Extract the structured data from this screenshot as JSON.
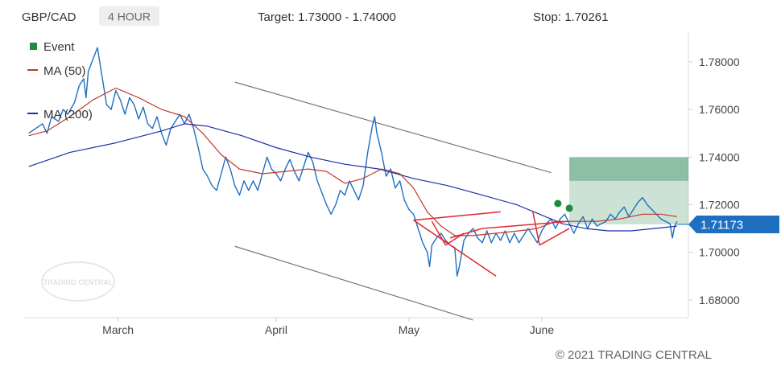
{
  "header": {
    "symbol": "GBP/CAD",
    "timeframe": "4 HOUR",
    "target": "Target: 1.73000 - 1.74000",
    "stop": "Stop: 1.70261"
  },
  "legend": {
    "event": "Event",
    "ma50": "MA (50)",
    "ma200": "MA (200)"
  },
  "watermark": "TRADING CENTRAL",
  "copyright": "© 2021 TRADING CENTRAL",
  "colors": {
    "price": "#1f6fc1",
    "ma50": "#c0392b",
    "ma200": "#1f2fa8",
    "event": "#1e8a3c",
    "target_zone": "#2e8b57",
    "pattern": "#e0262f",
    "channel": "#777777",
    "badge": "#1f6fc1"
  },
  "chart_data": {
    "type": "line",
    "x_labels": [
      "March",
      "April",
      "May",
      "June"
    ],
    "y_ticks": [
      1.68,
      1.7,
      1.72,
      1.74,
      1.76,
      1.78
    ],
    "y_tick_labels": [
      "1.68000",
      "1.70000",
      "1.72000",
      "1.74000",
      "1.76000",
      "1.78000"
    ],
    "ylim": [
      1.6725,
      1.7925
    ],
    "last_price": 1.71173,
    "last_price_label": "1.71173",
    "target_range": [
      1.73,
      1.74
    ],
    "stop": 1.70261,
    "series": [
      {
        "name": "GBP/CAD",
        "points": [
          [
            2,
            1.75
          ],
          [
            5,
            1.752
          ],
          [
            8,
            1.754
          ],
          [
            10,
            1.75
          ],
          [
            12,
            1.757
          ],
          [
            15,
            1.755
          ],
          [
            17,
            1.76
          ],
          [
            19,
            1.758
          ],
          [
            22,
            1.763
          ],
          [
            24,
            1.77
          ],
          [
            26,
            1.773
          ],
          [
            27,
            1.765
          ],
          [
            28,
            1.776
          ],
          [
            30,
            1.781
          ],
          [
            32,
            1.786
          ],
          [
            34,
            1.774
          ],
          [
            36,
            1.762
          ],
          [
            38,
            1.76
          ],
          [
            40,
            1.768
          ],
          [
            42,
            1.764
          ],
          [
            44,
            1.758
          ],
          [
            46,
            1.765
          ],
          [
            48,
            1.762
          ],
          [
            50,
            1.756
          ],
          [
            52,
            1.761
          ],
          [
            54,
            1.754
          ],
          [
            56,
            1.752
          ],
          [
            58,
            1.757
          ],
          [
            60,
            1.75
          ],
          [
            62,
            1.745
          ],
          [
            64,
            1.752
          ],
          [
            66,
            1.755
          ],
          [
            68,
            1.758
          ],
          [
            70,
            1.754
          ],
          [
            72,
            1.758
          ],
          [
            74,
            1.752
          ],
          [
            76,
            1.744
          ],
          [
            78,
            1.735
          ],
          [
            80,
            1.732
          ],
          [
            82,
            1.728
          ],
          [
            84,
            1.726
          ],
          [
            86,
            1.733
          ],
          [
            88,
            1.74
          ],
          [
            90,
            1.735
          ],
          [
            92,
            1.728
          ],
          [
            94,
            1.724
          ],
          [
            96,
            1.73
          ],
          [
            98,
            1.726
          ],
          [
            100,
            1.73
          ],
          [
            102,
            1.726
          ],
          [
            104,
            1.733
          ],
          [
            106,
            1.74
          ],
          [
            108,
            1.735
          ],
          [
            110,
            1.733
          ],
          [
            112,
            1.73
          ],
          [
            114,
            1.735
          ],
          [
            116,
            1.739
          ],
          [
            118,
            1.734
          ],
          [
            120,
            1.73
          ],
          [
            122,
            1.736
          ],
          [
            124,
            1.742
          ],
          [
            126,
            1.738
          ],
          [
            128,
            1.73
          ],
          [
            130,
            1.725
          ],
          [
            132,
            1.72
          ],
          [
            134,
            1.716
          ],
          [
            136,
            1.72
          ],
          [
            138,
            1.726
          ],
          [
            140,
            1.724
          ],
          [
            142,
            1.73
          ],
          [
            144,
            1.726
          ],
          [
            146,
            1.722
          ],
          [
            148,
            1.728
          ],
          [
            150,
            1.742
          ],
          [
            152,
            1.753
          ],
          [
            153,
            1.757
          ],
          [
            154,
            1.75
          ],
          [
            156,
            1.742
          ],
          [
            158,
            1.732
          ],
          [
            160,
            1.735
          ],
          [
            162,
            1.727
          ],
          [
            164,
            1.73
          ],
          [
            166,
            1.722
          ],
          [
            168,
            1.718
          ],
          [
            170,
            1.716
          ],
          [
            172,
            1.71
          ],
          [
            174,
            1.704
          ],
          [
            176,
            1.7
          ],
          [
            177,
            1.694
          ],
          [
            178,
            1.703
          ],
          [
            180,
            1.706
          ],
          [
            182,
            1.708
          ],
          [
            184,
            1.705
          ],
          [
            186,
            1.703
          ],
          [
            188,
            1.702
          ],
          [
            189,
            1.69
          ],
          [
            190,
            1.694
          ],
          [
            192,
            1.705
          ],
          [
            194,
            1.708
          ],
          [
            196,
            1.71
          ],
          [
            198,
            1.706
          ],
          [
            200,
            1.704
          ],
          [
            202,
            1.709
          ],
          [
            204,
            1.704
          ],
          [
            206,
            1.708
          ],
          [
            208,
            1.705
          ],
          [
            210,
            1.709
          ],
          [
            212,
            1.704
          ],
          [
            214,
            1.708
          ],
          [
            216,
            1.704
          ],
          [
            218,
            1.707
          ],
          [
            220,
            1.71
          ],
          [
            222,
            1.707
          ],
          [
            224,
            1.704
          ],
          [
            226,
            1.709
          ],
          [
            228,
            1.712
          ],
          [
            230,
            1.714
          ],
          [
            232,
            1.71
          ],
          [
            234,
            1.714
          ],
          [
            236,
            1.716
          ],
          [
            238,
            1.712
          ],
          [
            240,
            1.708
          ],
          [
            242,
            1.712
          ],
          [
            244,
            1.715
          ],
          [
            246,
            1.71
          ],
          [
            248,
            1.714
          ],
          [
            250,
            1.711
          ],
          [
            252,
            1.712
          ],
          [
            254,
            1.713
          ],
          [
            256,
            1.716
          ],
          [
            258,
            1.714
          ],
          [
            260,
            1.717
          ],
          [
            262,
            1.719
          ],
          [
            264,
            1.715
          ],
          [
            266,
            1.718
          ],
          [
            268,
            1.721
          ],
          [
            270,
            1.723
          ],
          [
            272,
            1.72
          ],
          [
            274,
            1.718
          ],
          [
            276,
            1.716
          ],
          [
            278,
            1.714
          ],
          [
            280,
            1.713
          ],
          [
            282,
            1.712
          ],
          [
            283,
            1.706
          ],
          [
            284,
            1.711
          ],
          [
            285,
            1.713
          ]
        ]
      },
      {
        "name": "MA (50)",
        "points": [
          [
            2,
            1.749
          ],
          [
            10,
            1.751
          ],
          [
            20,
            1.757
          ],
          [
            30,
            1.764
          ],
          [
            40,
            1.769
          ],
          [
            50,
            1.765
          ],
          [
            60,
            1.76
          ],
          [
            70,
            1.757
          ],
          [
            78,
            1.75
          ],
          [
            86,
            1.741
          ],
          [
            94,
            1.735
          ],
          [
            104,
            1.733
          ],
          [
            114,
            1.734
          ],
          [
            124,
            1.735
          ],
          [
            132,
            1.734
          ],
          [
            140,
            1.729
          ],
          [
            148,
            1.731
          ],
          [
            156,
            1.735
          ],
          [
            164,
            1.733
          ],
          [
            170,
            1.727
          ],
          [
            176,
            1.717
          ],
          [
            182,
            1.711
          ],
          [
            188,
            1.707
          ],
          [
            196,
            1.707
          ],
          [
            206,
            1.708
          ],
          [
            216,
            1.709
          ],
          [
            224,
            1.71
          ],
          [
            232,
            1.713
          ],
          [
            240,
            1.713
          ],
          [
            250,
            1.713
          ],
          [
            260,
            1.714
          ],
          [
            270,
            1.716
          ],
          [
            278,
            1.716
          ],
          [
            285,
            1.715
          ]
        ]
      },
      {
        "name": "MA (200)",
        "points": [
          [
            2,
            1.736
          ],
          [
            20,
            1.742
          ],
          [
            40,
            1.746
          ],
          [
            60,
            1.751
          ],
          [
            70,
            1.754
          ],
          [
            80,
            1.753
          ],
          [
            95,
            1.749
          ],
          [
            110,
            1.744
          ],
          [
            125,
            1.74
          ],
          [
            140,
            1.737
          ],
          [
            155,
            1.735
          ],
          [
            170,
            1.731
          ],
          [
            185,
            1.728
          ],
          [
            200,
            1.724
          ],
          [
            215,
            1.72
          ],
          [
            225,
            1.716
          ],
          [
            235,
            1.712
          ],
          [
            245,
            1.71
          ],
          [
            255,
            1.709
          ],
          [
            265,
            1.709
          ],
          [
            275,
            1.71
          ],
          [
            285,
            1.711
          ]
        ]
      }
    ],
    "events": [
      [
        233,
        1.7205
      ],
      [
        238,
        1.7185
      ]
    ],
    "channel_lines": [
      [
        [
          92,
          1.7715
        ],
        [
          230,
          1.7335
        ]
      ],
      [
        [
          92,
          1.7025
        ],
        [
          196,
          1.6715
        ]
      ]
    ],
    "pattern_lines": [
      [
        [
          170,
          1.7135
        ],
        [
          208,
          1.717
        ]
      ],
      [
        [
          170,
          1.7135
        ],
        [
          206,
          1.69
        ]
      ],
      [
        [
          178,
          1.713
        ],
        [
          184,
          1.703
        ]
      ],
      [
        [
          184,
          1.703
        ],
        [
          192,
          1.708
        ]
      ],
      [
        [
          186,
          1.706
        ],
        [
          200,
          1.71
        ]
      ],
      [
        [
          200,
          1.71
        ],
        [
          238,
          1.713
        ]
      ],
      [
        [
          222,
          1.7175
        ],
        [
          225,
          1.703
        ]
      ],
      [
        [
          225,
          1.703
        ],
        [
          238,
          1.71
        ]
      ]
    ]
  }
}
